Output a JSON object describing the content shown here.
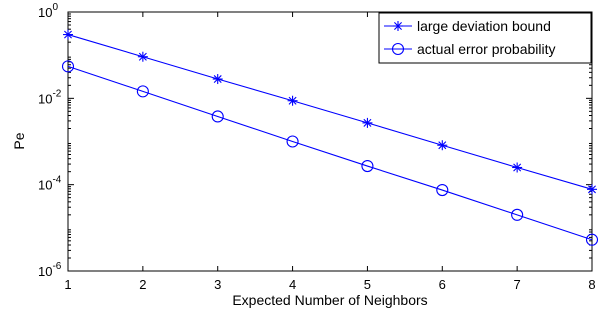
{
  "chart_data": {
    "type": "line",
    "xlabel": "Expected Number of Neighbors",
    "ylabel": "Pe",
    "xlim": [
      1,
      8
    ],
    "ylim": [
      1e-06,
      1
    ],
    "yscale": "log",
    "grid": false,
    "legend_position": "top-right",
    "x_ticks": [
      "1",
      "2",
      "3",
      "4",
      "5",
      "6",
      "7",
      "8"
    ],
    "y_ticks": [
      {
        "value": 1e-06,
        "base": "10",
        "exp": "-6"
      },
      {
        "value": 0.0001,
        "base": "10",
        "exp": "-4"
      },
      {
        "value": 0.01,
        "base": "10",
        "exp": "-2"
      },
      {
        "value": 1,
        "base": "10",
        "exp": "0"
      }
    ],
    "x": [
      1,
      2,
      3,
      4,
      5,
      6,
      7,
      8
    ],
    "series": [
      {
        "name": "large deviation bound",
        "marker": "asterisk",
        "color": "#0000ff",
        "values": [
          0.3,
          0.092,
          0.028,
          0.0088,
          0.0027,
          0.00082,
          0.00025,
          7.8e-05
        ]
      },
      {
        "name": "actual error probability",
        "marker": "circle",
        "color": "#0000ff",
        "values": [
          0.055,
          0.0145,
          0.0038,
          0.001,
          0.00027,
          7.5e-05,
          2e-05,
          5.3e-06
        ]
      }
    ]
  }
}
